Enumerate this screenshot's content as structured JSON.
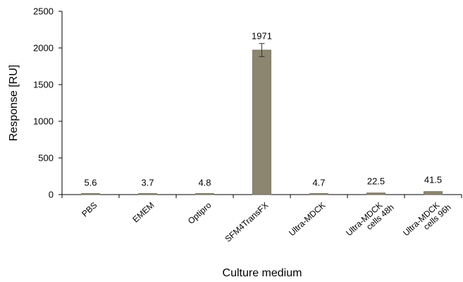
{
  "chart_data": {
    "type": "bar",
    "categories": [
      [
        "PBS"
      ],
      [
        "EMEM"
      ],
      [
        "Optipro"
      ],
      [
        "SFM4TransFX"
      ],
      [
        "Ultra-MDCK"
      ],
      [
        "Ultra-MDCK",
        "cells 48h"
      ],
      [
        "Ultra-MDCK",
        "cells 96h"
      ]
    ],
    "values": [
      5.6,
      3.7,
      4.8,
      1971,
      4.7,
      22.5,
      41.5
    ],
    "data_labels": [
      "5.6",
      "3.7",
      "4.8",
      "1971",
      "4.7",
      "22.5",
      "41.5"
    ],
    "error": [
      0,
      0,
      0,
      90,
      0,
      0,
      0
    ],
    "xlabel": "Culture medium",
    "ylabel": "Response [RU]",
    "ylim": [
      0,
      2500
    ],
    "yticks": [
      0,
      500,
      1000,
      1500,
      2000,
      2500
    ],
    "grid": false,
    "colors": {
      "bar": "#8c8570",
      "bar_stroke": "#6e6856",
      "axis": "#000000"
    }
  }
}
